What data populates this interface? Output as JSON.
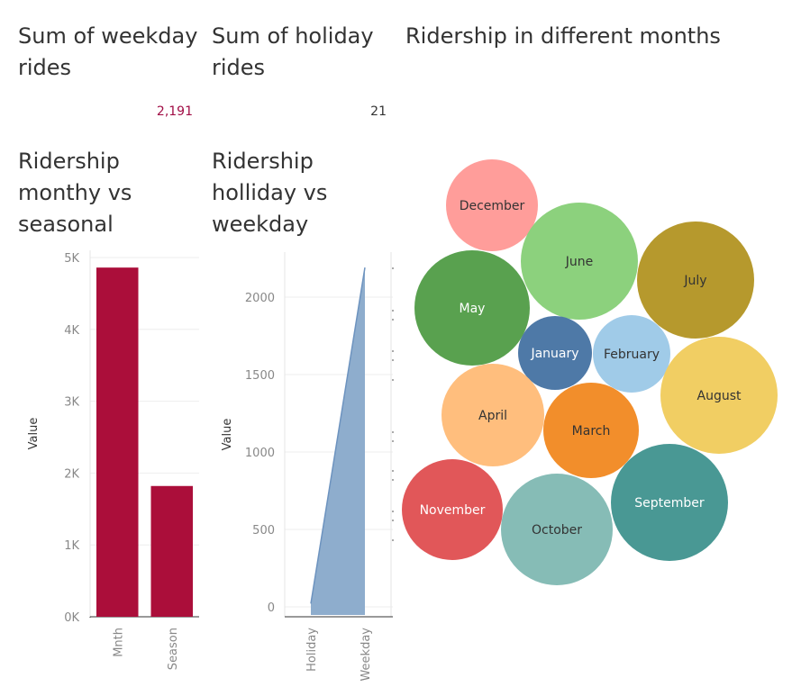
{
  "kpis": {
    "weekday": {
      "title_line1": "Sum of weekday",
      "title_line2": "rides",
      "value": "2,191",
      "color": "#a10d45"
    },
    "holiday": {
      "title_line1": "Sum of holiday",
      "title_line2": "rides",
      "value": "21",
      "color": "#333333"
    }
  },
  "titles": {
    "bubbles": "Ridership in different months",
    "bar": [
      "Ridership",
      "monthy vs",
      "seasonal"
    ],
    "area": [
      "Ridership",
      "holliday vs",
      "weekday"
    ]
  },
  "chart_data": [
    {
      "type": "bar",
      "categories": [
        "Mnth",
        "Season"
      ],
      "values": [
        4860,
        1820
      ],
      "ylabel": "Value",
      "xlabel": "",
      "ylim": [
        0,
        5000
      ],
      "yticks": [
        "0K",
        "1K",
        "2K",
        "3K",
        "4K",
        "5K"
      ],
      "color": "#ab0e3a",
      "grid": true
    },
    {
      "type": "area",
      "categories": [
        "Holiday",
        "Weekday"
      ],
      "values": [
        21,
        2191
      ],
      "ylabel": "Value",
      "xlabel": "",
      "ylim": [
        0,
        2200
      ],
      "yticks": [
        0,
        500,
        1000,
        1500,
        2000
      ],
      "color": "#8eadcd",
      "line_color": "#6d93bf",
      "grid": true
    },
    {
      "type": "bubble",
      "items": [
        {
          "label": "December",
          "color": "#ff9d9a",
          "text_color": "#333333"
        },
        {
          "label": "June",
          "color": "#8cd17d",
          "text_color": "#333333"
        },
        {
          "label": "July",
          "color": "#b6992d",
          "text_color": "#333333"
        },
        {
          "label": "May",
          "color": "#59a14f",
          "text_color": "#ffffff"
        },
        {
          "label": "January",
          "color": "#4e79a7",
          "text_color": "#ffffff"
        },
        {
          "label": "February",
          "color": "#a0cbe8",
          "text_color": "#333333"
        },
        {
          "label": "August",
          "color": "#f1ce63",
          "text_color": "#333333"
        },
        {
          "label": "April",
          "color": "#ffbe7d",
          "text_color": "#333333"
        },
        {
          "label": "March",
          "color": "#f28e2b",
          "text_color": "#333333"
        },
        {
          "label": "November",
          "color": "#e15759",
          "text_color": "#ffffff"
        },
        {
          "label": "October",
          "color": "#86bcb6",
          "text_color": "#333333"
        },
        {
          "label": "September",
          "color": "#499894",
          "text_color": "#ffffff"
        }
      ]
    }
  ]
}
